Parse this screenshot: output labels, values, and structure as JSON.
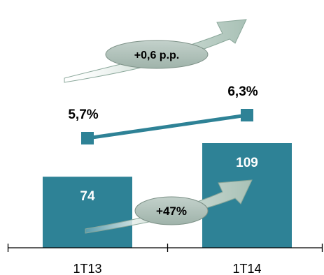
{
  "chart_data": {
    "type": "bar",
    "categories": [
      "1T13",
      "1T14"
    ],
    "bar_values": [
      74,
      109
    ],
    "bar_labels": [
      "74",
      "109"
    ],
    "line_values": [
      5.7,
      6.3
    ],
    "line_labels": [
      "5,7%",
      "6,3%"
    ],
    "annotations": {
      "line_change": "+0,6 p.p.",
      "bar_change": "+47%"
    },
    "colors": {
      "bar": "#2e8296",
      "line": "#2e8296",
      "arrow_light": "#e4eee9",
      "arrow_dark": "#7f9b8f",
      "ellipse": "#aabcb4"
    },
    "grid": false,
    "legend": "none"
  }
}
